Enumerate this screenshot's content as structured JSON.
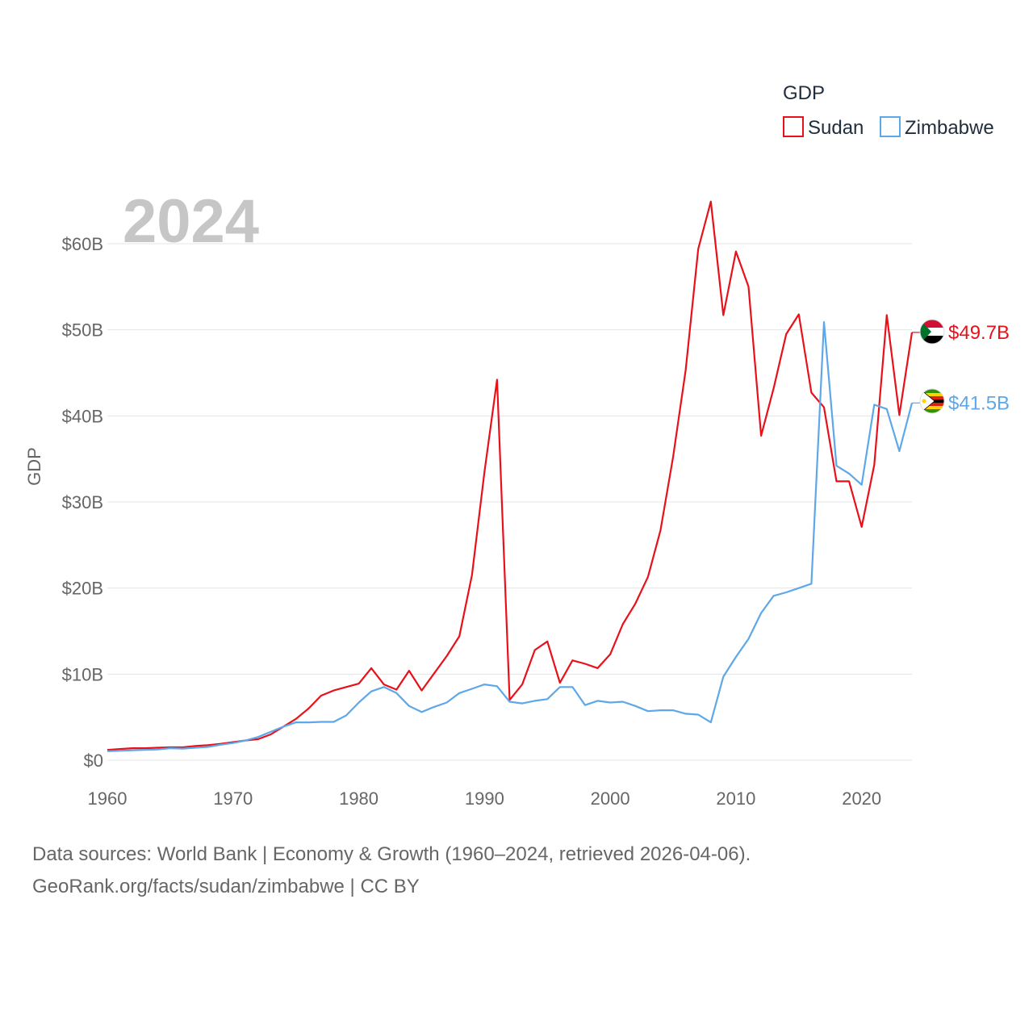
{
  "chart_data": {
    "type": "line",
    "title": "GDP",
    "ylabel": "GDP",
    "xlabel": "",
    "highlight_year": "2024",
    "xlim": [
      1960,
      2024
    ],
    "ylim": [
      0,
      65
    ],
    "y_ticks": [
      {
        "value": 0,
        "label": "$0"
      },
      {
        "value": 10,
        "label": "$10B"
      },
      {
        "value": 20,
        "label": "$20B"
      },
      {
        "value": 30,
        "label": "$30B"
      },
      {
        "value": 40,
        "label": "$40B"
      },
      {
        "value": 50,
        "label": "$50B"
      },
      {
        "value": 60,
        "label": "$60B"
      }
    ],
    "x_ticks": [
      {
        "value": 1960,
        "label": "1960"
      },
      {
        "value": 1970,
        "label": "1970"
      },
      {
        "value": 1980,
        "label": "1980"
      },
      {
        "value": 1990,
        "label": "1990"
      },
      {
        "value": 2000,
        "label": "2000"
      },
      {
        "value": 2010,
        "label": "2010"
      },
      {
        "value": 2020,
        "label": "2020"
      }
    ],
    "legend": {
      "title": "GDP",
      "position": "top-right"
    },
    "x": [
      1960,
      1961,
      1962,
      1963,
      1964,
      1965,
      1966,
      1967,
      1968,
      1969,
      1970,
      1971,
      1972,
      1973,
      1974,
      1975,
      1976,
      1977,
      1978,
      1979,
      1980,
      1981,
      1982,
      1983,
      1984,
      1985,
      1986,
      1987,
      1988,
      1989,
      1990,
      1991,
      1992,
      1993,
      1994,
      1995,
      1996,
      1997,
      1998,
      1999,
      2000,
      2001,
      2002,
      2003,
      2004,
      2005,
      2006,
      2007,
      2008,
      2009,
      2010,
      2011,
      2012,
      2013,
      2014,
      2015,
      2016,
      2017,
      2018,
      2019,
      2020,
      2021,
      2022,
      2023,
      2024
    ],
    "series": [
      {
        "name": "Sudan",
        "color": "#e8111a",
        "end_label": "$49.7B",
        "flag": "sudan-flag",
        "values": [
          1.2,
          1.3,
          1.4,
          1.4,
          1.45,
          1.5,
          1.5,
          1.65,
          1.75,
          1.9,
          2.1,
          2.3,
          2.45,
          3.0,
          3.9,
          4.8,
          6.0,
          7.5,
          8.1,
          8.5,
          8.9,
          10.7,
          8.8,
          8.2,
          10.4,
          8.1,
          10.1,
          12.1,
          14.4,
          21.5,
          33.5,
          44.2,
          7.0,
          8.8,
          12.8,
          13.8,
          9.0,
          11.6,
          11.2,
          10.7,
          12.3,
          15.8,
          18.2,
          21.3,
          26.7,
          35.2,
          45.3,
          59.4,
          64.9,
          51.7,
          59.1,
          55.0,
          37.7,
          43.2,
          49.5,
          51.8,
          42.7,
          41.0,
          32.4,
          32.4,
          27.1,
          34.3,
          51.7,
          40.1,
          49.7
        ]
      },
      {
        "name": "Zimbabwe",
        "color": "#5ea7e8",
        "end_label": "$41.5B",
        "flag": "zimbabwe-flag",
        "values": [
          1.05,
          1.1,
          1.15,
          1.2,
          1.25,
          1.4,
          1.35,
          1.45,
          1.55,
          1.8,
          2.0,
          2.3,
          2.7,
          3.3,
          3.9,
          4.4,
          4.4,
          4.45,
          4.45,
          5.2,
          6.7,
          8.0,
          8.5,
          7.8,
          6.3,
          5.6,
          6.2,
          6.7,
          7.8,
          8.3,
          8.8,
          8.6,
          6.8,
          6.6,
          6.9,
          7.1,
          8.5,
          8.5,
          6.4,
          6.9,
          6.7,
          6.8,
          6.3,
          5.7,
          5.8,
          5.8,
          5.4,
          5.3,
          4.4,
          9.7,
          12.0,
          14.1,
          17.1,
          19.1,
          19.5,
          20.0,
          20.5,
          50.9,
          34.2,
          33.3,
          32.0,
          41.3,
          40.8,
          35.9,
          41.5
        ]
      }
    ]
  },
  "footer": {
    "line1": "Data sources: World Bank | Economy & Growth (1960–2024, retrieved 2026-04-06).",
    "line2": "GeoRank.org/facts/sudan/zimbabwe | CC BY"
  }
}
